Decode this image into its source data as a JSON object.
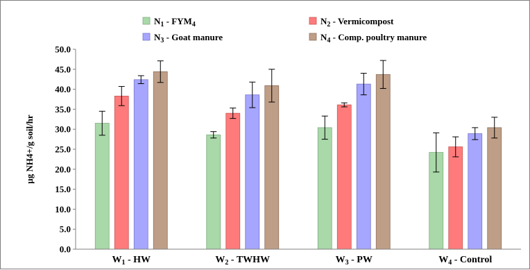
{
  "chart_data": {
    "type": "bar",
    "ylabel": "µg NH4+/g soil/hr",
    "ylim": [
      0,
      50
    ],
    "yticks": [
      "0.0",
      "5.0",
      "10.0",
      "15.0",
      "20.0",
      "25.0",
      "30.0",
      "35.0",
      "40.0",
      "45.0",
      "50.0"
    ],
    "ytick_values": [
      0,
      5,
      10,
      15,
      20,
      25,
      30,
      35,
      40,
      45,
      50
    ],
    "grid": false,
    "legend_position": "top",
    "categories": [
      {
        "main": "W",
        "sub": "1",
        "rest": " - HW"
      },
      {
        "main": "W",
        "sub": "2",
        "rest": " - TWHW"
      },
      {
        "main": "W",
        "sub": "3",
        "rest": " - PW"
      },
      {
        "main": "W",
        "sub": "4",
        "rest": " - Control"
      }
    ],
    "series": [
      {
        "name": {
          "main": "N",
          "sub": "1",
          "rest": " - FYM",
          "sub2": "4"
        },
        "color": "#a9d8a9",
        "edge": "#7fae7f",
        "values": [
          31.5,
          28.6,
          30.4,
          24.2
        ],
        "errors": [
          3.0,
          0.8,
          2.9,
          4.9
        ]
      },
      {
        "name": {
          "main": "N",
          "sub": "2",
          "rest": " - Vermicompost",
          "sub2": ""
        },
        "color": "#ff7b7b",
        "edge": "#c95656",
        "values": [
          38.3,
          34.0,
          36.1,
          25.6
        ],
        "errors": [
          2.4,
          1.3,
          0.5,
          2.5
        ]
      },
      {
        "name": {
          "main": "N",
          "sub": "3",
          "rest": " - Goat manure",
          "sub2": ""
        },
        "color": "#a6a6ff",
        "edge": "#7777cc",
        "values": [
          42.4,
          38.6,
          41.3,
          28.9
        ],
        "errors": [
          1.0,
          3.2,
          2.7,
          1.5
        ]
      },
      {
        "name": {
          "main": "N",
          "sub": "4",
          "rest": " - Comp. poultry manure",
          "sub2": ""
        },
        "color": "#bf9e87",
        "edge": "#8e715e",
        "values": [
          44.4,
          40.9,
          43.7,
          30.4
        ],
        "errors": [
          2.7,
          4.1,
          3.5,
          2.6
        ]
      }
    ]
  }
}
